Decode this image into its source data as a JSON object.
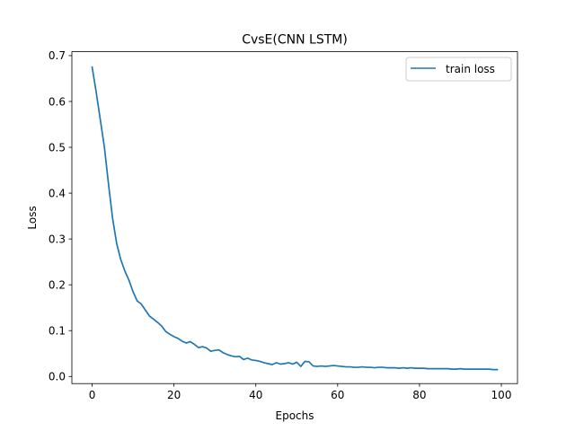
{
  "chart_data": {
    "type": "line",
    "title": "CvsE(CNN LSTM)",
    "xlabel": "Epochs",
    "ylabel": "Loss",
    "xlim": [
      -4.95,
      103.95
    ],
    "ylim": [
      -0.0155,
      0.7085
    ],
    "xticks": [
      0,
      20,
      40,
      60,
      80,
      100
    ],
    "yticks": [
      0.0,
      0.1,
      0.2,
      0.3,
      0.4,
      0.5,
      0.6,
      0.7
    ],
    "ytick_labels": [
      "0.0",
      "0.1",
      "0.2",
      "0.3",
      "0.4",
      "0.5",
      "0.6",
      "0.7"
    ],
    "grid": false,
    "legend_position": "top-right",
    "series": [
      {
        "name": "train loss",
        "color": "#1f77b4",
        "x": [
          0,
          1,
          2,
          3,
          4,
          5,
          6,
          7,
          8,
          9,
          10,
          11,
          12,
          13,
          14,
          15,
          16,
          17,
          18,
          19,
          20,
          21,
          22,
          23,
          24,
          25,
          26,
          27,
          28,
          29,
          30,
          31,
          32,
          33,
          34,
          35,
          36,
          37,
          38,
          39,
          40,
          41,
          42,
          43,
          44,
          45,
          46,
          47,
          48,
          49,
          50,
          51,
          52,
          53,
          54,
          55,
          56,
          57,
          58,
          59,
          60,
          61,
          62,
          63,
          64,
          65,
          66,
          67,
          68,
          69,
          70,
          71,
          72,
          73,
          74,
          75,
          76,
          77,
          78,
          79,
          80,
          81,
          82,
          83,
          84,
          85,
          86,
          87,
          88,
          89,
          90,
          91,
          92,
          93,
          94,
          95,
          96,
          97,
          98,
          99
        ],
        "y": [
          0.675,
          0.62,
          0.56,
          0.5,
          0.42,
          0.345,
          0.29,
          0.255,
          0.23,
          0.21,
          0.185,
          0.165,
          0.158,
          0.145,
          0.132,
          0.125,
          0.118,
          0.11,
          0.098,
          0.092,
          0.087,
          0.083,
          0.077,
          0.073,
          0.076,
          0.07,
          0.063,
          0.065,
          0.062,
          0.055,
          0.057,
          0.058,
          0.052,
          0.048,
          0.045,
          0.043,
          0.044,
          0.037,
          0.04,
          0.036,
          0.035,
          0.033,
          0.03,
          0.028,
          0.026,
          0.03,
          0.027,
          0.028,
          0.03,
          0.027,
          0.031,
          0.022,
          0.033,
          0.032,
          0.023,
          0.022,
          0.023,
          0.022,
          0.023,
          0.024,
          0.023,
          0.022,
          0.021,
          0.021,
          0.02,
          0.02,
          0.021,
          0.02,
          0.02,
          0.019,
          0.02,
          0.02,
          0.019,
          0.019,
          0.019,
          0.018,
          0.019,
          0.018,
          0.019,
          0.018,
          0.018,
          0.018,
          0.017,
          0.017,
          0.017,
          0.017,
          0.017,
          0.017,
          0.016,
          0.016,
          0.017,
          0.016,
          0.016,
          0.016,
          0.016,
          0.016,
          0.016,
          0.016,
          0.015,
          0.015
        ]
      }
    ]
  }
}
